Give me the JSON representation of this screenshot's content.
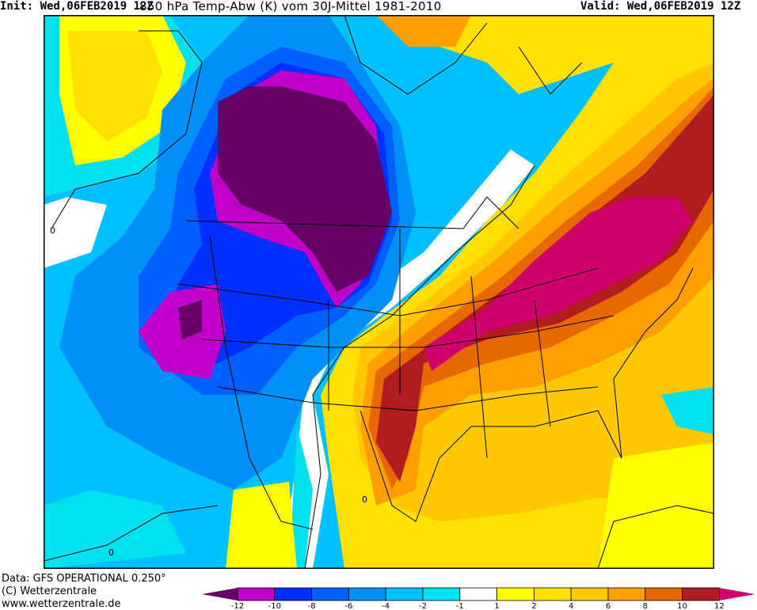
{
  "header": {
    "init": "Init: Wed,06FEB2019 12Z",
    "title": "850 hPa Temp-Abw (K) vom 30J-Mittel 1981-2010",
    "valid": "Valid: Wed,06FEB2019 12Z"
  },
  "footer": {
    "data_source": "Data: GFS OPERATIONAL 0.250°",
    "copyright": "(C) Wetterzentrale",
    "url": "www.wetterzentrale.de"
  },
  "map": {
    "contour_label": "0"
  },
  "colorbar": {
    "under_color": "#660066",
    "over_color": "#d0006a",
    "segments": [
      {
        "from": -12,
        "to": -10,
        "color": "#c000c8"
      },
      {
        "from": -10,
        "to": -8,
        "color": "#0030ff"
      },
      {
        "from": -8,
        "to": -6,
        "color": "#0060ff"
      },
      {
        "from": -6,
        "to": -4,
        "color": "#0090f8"
      },
      {
        "from": -4,
        "to": -2,
        "color": "#00c0ff"
      },
      {
        "from": -2,
        "to": -1,
        "color": "#00e0ee"
      },
      {
        "from": -1,
        "to": 1,
        "color": "#ffffff"
      },
      {
        "from": 1,
        "to": 2,
        "color": "#ffff00"
      },
      {
        "from": 2,
        "to": 4,
        "color": "#ffe000"
      },
      {
        "from": 4,
        "to": 6,
        "color": "#ffc800"
      },
      {
        "from": 6,
        "to": 8,
        "color": "#ffa000"
      },
      {
        "from": 8,
        "to": 10,
        "color": "#e86800"
      },
      {
        "from": 10,
        "to": 12,
        "color": "#b01c20"
      }
    ],
    "tick_labels": [
      "-12",
      "-10",
      "-8",
      "-6",
      "-4",
      "-2",
      "-1",
      "1",
      "2",
      "4",
      "6",
      "8",
      "10",
      "12"
    ]
  }
}
